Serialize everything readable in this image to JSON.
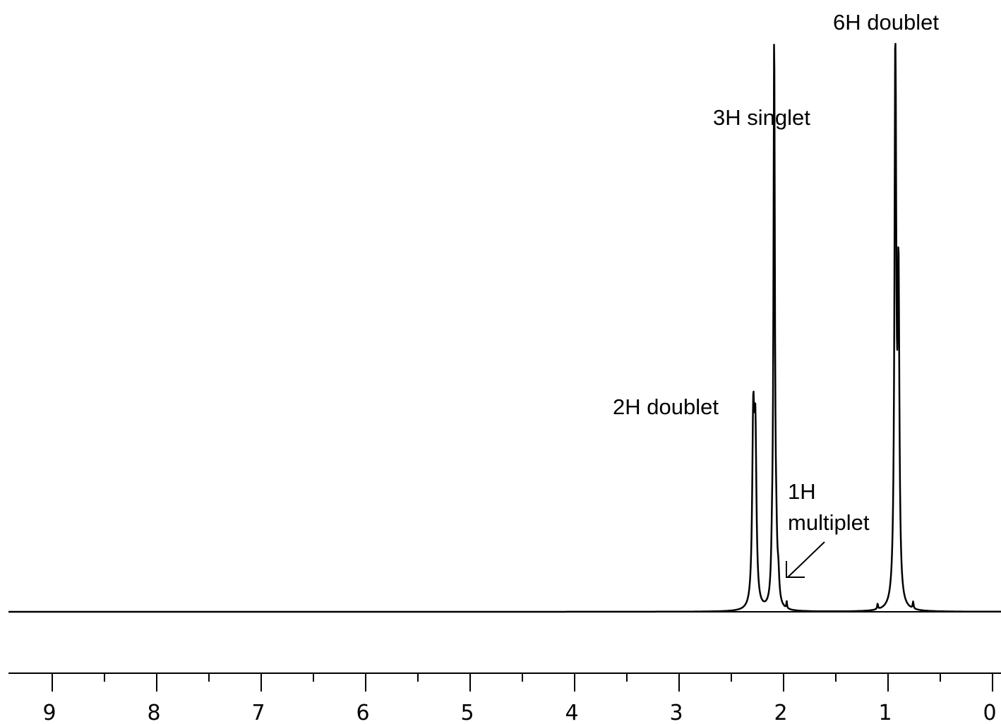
{
  "chart_data": {
    "type": "line",
    "title": "",
    "xlabel": "",
    "ylabel": "",
    "x_axis": {
      "reversed": true,
      "range": [
        9.4,
        0
      ],
      "major_ticks": [
        9,
        8,
        7,
        6,
        5,
        4,
        3,
        2,
        1,
        0
      ],
      "tick_labels": [
        "9",
        "8",
        "7",
        "6",
        "5",
        "4",
        "3",
        "2",
        "1",
        "0"
      ],
      "minor_tick_step": 0.5
    },
    "y_range": [
      0,
      1
    ],
    "grid": false,
    "colors": {
      "trace": "#000000",
      "background": "#ffffff"
    },
    "peaks": [
      {
        "shift": 2.29,
        "height": 0.31,
        "width": 0.012,
        "group": "2H doublet"
      },
      {
        "shift": 2.27,
        "height": 0.28,
        "width": 0.012,
        "group": "2H doublet"
      },
      {
        "shift": 2.11,
        "height": 0.06,
        "width": 0.01,
        "group": "1H multiplet"
      },
      {
        "shift": 2.09,
        "height": 0.99,
        "width": 0.008,
        "group": "3H singlet"
      },
      {
        "shift": 2.07,
        "height": 0.07,
        "width": 0.01,
        "group": "1H multiplet"
      },
      {
        "shift": 2.05,
        "height": 0.04,
        "width": 0.01,
        "group": "1H multiplet"
      },
      {
        "shift": 1.97,
        "height": 0.012,
        "width": 0.004,
        "group": ""
      },
      {
        "shift": 1.1,
        "height": 0.01,
        "width": 0.005,
        "group": ""
      },
      {
        "shift": 0.93,
        "height": 1.0,
        "width": 0.01,
        "group": "6H doublet"
      },
      {
        "shift": 0.9,
        "height": 0.55,
        "width": 0.01,
        "group": "6H doublet"
      },
      {
        "shift": 0.76,
        "height": 0.012,
        "width": 0.005,
        "group": ""
      }
    ],
    "annotations": {
      "doublet_6h": "6H doublet",
      "singlet_3h": "3H singlet",
      "doublet_2h": "2H doublet",
      "multiplet_1h_line1": "1H",
      "multiplet_1h_line2": "multiplet"
    }
  }
}
